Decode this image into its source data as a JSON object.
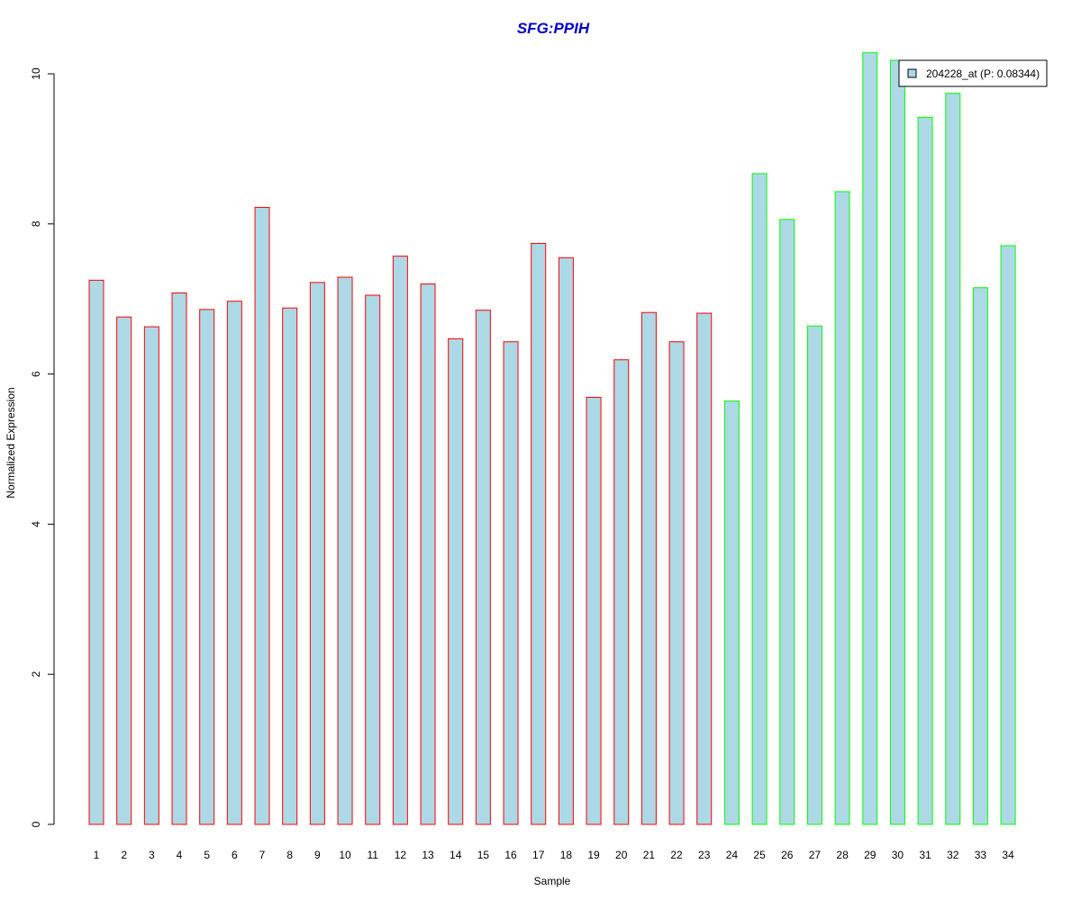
{
  "chart_data": {
    "type": "bar",
    "title": "SFG:PPIH",
    "xlabel": "Sample",
    "ylabel": "Normalized Expression",
    "ylim": [
      0,
      10
    ],
    "yticks": [
      0,
      2,
      4,
      6,
      8,
      10
    ],
    "categories": [
      "1",
      "2",
      "3",
      "4",
      "5",
      "6",
      "7",
      "8",
      "9",
      "10",
      "11",
      "12",
      "13",
      "14",
      "15",
      "16",
      "17",
      "18",
      "19",
      "20",
      "21",
      "22",
      "23",
      "24",
      "25",
      "26",
      "27",
      "28",
      "29",
      "30",
      "31",
      "32",
      "33",
      "34"
    ],
    "values": [
      7.25,
      6.76,
      6.63,
      7.08,
      6.86,
      6.97,
      8.22,
      6.88,
      7.22,
      7.29,
      7.05,
      7.57,
      7.2,
      6.47,
      6.85,
      6.43,
      7.74,
      7.55,
      5.69,
      6.19,
      6.82,
      6.43,
      6.81,
      5.64,
      8.67,
      8.06,
      6.64,
      8.43,
      10.28,
      10.18,
      9.42,
      9.74,
      7.15,
      7.71
    ],
    "groups": [
      1,
      1,
      1,
      1,
      1,
      1,
      1,
      1,
      1,
      1,
      1,
      1,
      1,
      1,
      1,
      1,
      1,
      1,
      1,
      1,
      1,
      1,
      1,
      2,
      2,
      2,
      2,
      2,
      2,
      2,
      2,
      2,
      2,
      2
    ],
    "grid": false,
    "legend_position": "top-right",
    "legend": "204228_at (P: 0.08344)",
    "colors": {
      "fill": "#add8e6",
      "group1_border": "#ff0000",
      "group2_border": "#00ff00",
      "title": "#0000cc",
      "axis": "#000000"
    }
  }
}
